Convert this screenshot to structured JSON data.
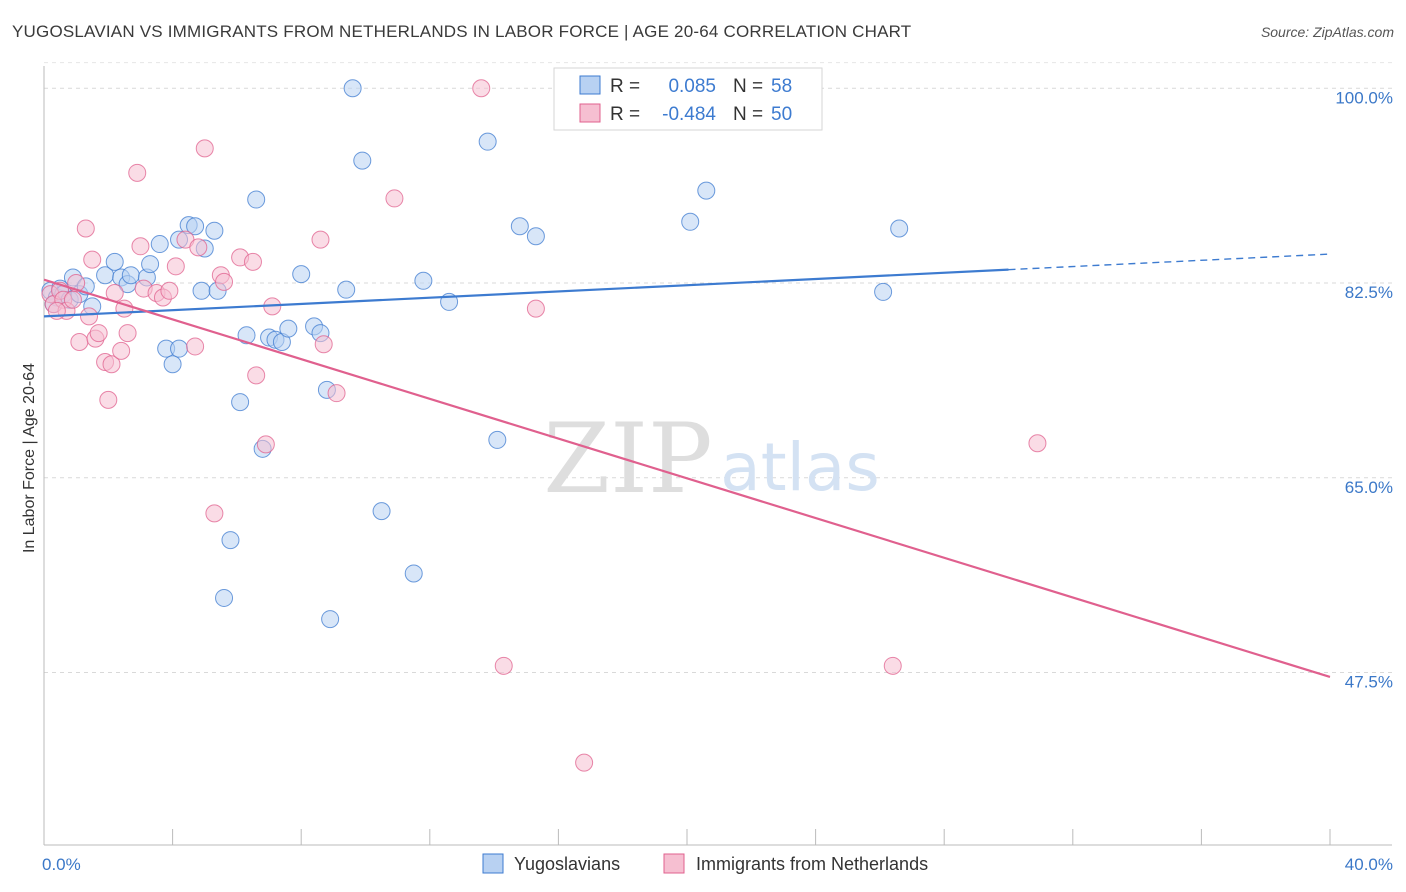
{
  "title": "YUGOSLAVIAN VS IMMIGRANTS FROM NETHERLANDS IN LABOR FORCE | AGE 20-64 CORRELATION CHART",
  "source": "Source: ZipAtlas.com",
  "watermark": {
    "zip": "ZIP",
    "atlas": "atlas"
  },
  "colors": {
    "blue": "#3d7bd0",
    "blue_fill": "#b8d1f2",
    "pink": "#e0608e",
    "pink_fill": "#f6bfd1",
    "tick_text": "#3b78c8"
  },
  "legend": {
    "rows": [
      {
        "r_label": "R =",
        "r_value": "0.085",
        "n_label": "N =",
        "n_value": "58"
      },
      {
        "r_label": "R =",
        "r_value": "-0.484",
        "n_label": "N =",
        "n_value": "50"
      }
    ]
  },
  "bottom_legend": [
    "Yugoslavians",
    "Immigrants from Netherlands"
  ],
  "chart_data": {
    "type": "scatter",
    "xlabel": "",
    "ylabel": "In Labor Force | Age 20-64",
    "xlim": [
      0,
      40
    ],
    "ylim": [
      32,
      102
    ],
    "x_tick_labels": [
      {
        "x": 0,
        "label": "0.0%"
      },
      {
        "x": 40,
        "label": "40.0%"
      }
    ],
    "y_tick_labels": [
      {
        "y": 100,
        "label": "100.0%"
      },
      {
        "y": 82.5,
        "label": "82.5%"
      },
      {
        "y": 65,
        "label": "65.0%"
      },
      {
        "y": 47.5,
        "label": "47.5%"
      }
    ],
    "grid": true,
    "legend_position": "top-center",
    "series": [
      {
        "name": "Yugoslavians",
        "color": "#3d7bd0",
        "trend": {
          "x": [
            0,
            30,
            40
          ],
          "y": [
            79.5,
            83.7,
            85.1
          ],
          "dashed_from_x": 30
        },
        "points": [
          [
            0.2,
            81.8
          ],
          [
            0.4,
            81.2
          ],
          [
            0.5,
            82.0
          ],
          [
            0.6,
            81.5
          ],
          [
            0.8,
            81.0
          ],
          [
            0.9,
            83.0
          ],
          [
            1.1,
            81.5
          ],
          [
            1.3,
            82.2
          ],
          [
            1.5,
            80.4
          ],
          [
            1.9,
            83.2
          ],
          [
            2.2,
            84.4
          ],
          [
            2.4,
            83.0
          ],
          [
            2.6,
            82.4
          ],
          [
            2.7,
            83.2
          ],
          [
            3.2,
            83.0
          ],
          [
            3.3,
            84.2
          ],
          [
            3.6,
            86.0
          ],
          [
            3.8,
            76.6
          ],
          [
            4.0,
            75.2
          ],
          [
            4.2,
            76.6
          ],
          [
            4.2,
            86.4
          ],
          [
            4.5,
            87.7
          ],
          [
            4.7,
            87.6
          ],
          [
            4.9,
            81.8
          ],
          [
            5.0,
            85.6
          ],
          [
            5.3,
            87.2
          ],
          [
            5.4,
            81.8
          ],
          [
            5.8,
            59.4
          ],
          [
            5.6,
            54.2
          ],
          [
            6.1,
            71.8
          ],
          [
            6.3,
            77.8
          ],
          [
            6.6,
            90.0
          ],
          [
            6.8,
            67.6
          ],
          [
            7.0,
            77.6
          ],
          [
            7.2,
            77.4
          ],
          [
            7.4,
            77.2
          ],
          [
            7.6,
            78.4
          ],
          [
            8.0,
            83.3
          ],
          [
            8.4,
            78.6
          ],
          [
            8.6,
            78.0
          ],
          [
            8.8,
            72.9
          ],
          [
            8.9,
            52.3
          ],
          [
            9.4,
            81.9
          ],
          [
            9.6,
            100.0
          ],
          [
            9.9,
            93.5
          ],
          [
            10.5,
            62.0
          ],
          [
            11.5,
            56.4
          ],
          [
            11.8,
            82.7
          ],
          [
            12.6,
            80.8
          ],
          [
            13.8,
            95.2
          ],
          [
            14.1,
            68.4
          ],
          [
            14.8,
            87.6
          ],
          [
            15.3,
            86.7
          ],
          [
            20.1,
            88.0
          ],
          [
            20.6,
            90.8
          ],
          [
            26.6,
            87.4
          ],
          [
            26.1,
            81.7
          ],
          [
            0.3,
            80.6
          ]
        ]
      },
      {
        "name": "Immigrants from Netherlands",
        "color": "#e0608e",
        "trend": {
          "x": [
            0,
            40
          ],
          "y": [
            82.8,
            47.1
          ]
        },
        "points": [
          [
            0.2,
            81.5
          ],
          [
            0.3,
            80.6
          ],
          [
            0.5,
            81.8
          ],
          [
            0.6,
            81.0
          ],
          [
            0.7,
            80.0
          ],
          [
            0.9,
            81.0
          ],
          [
            1.0,
            82.5
          ],
          [
            1.1,
            77.2
          ],
          [
            1.3,
            87.4
          ],
          [
            1.4,
            79.5
          ],
          [
            1.5,
            84.6
          ],
          [
            1.6,
            77.5
          ],
          [
            1.7,
            78.0
          ],
          [
            1.9,
            75.4
          ],
          [
            2.0,
            72.0
          ],
          [
            2.1,
            75.2
          ],
          [
            2.2,
            81.6
          ],
          [
            2.4,
            76.4
          ],
          [
            2.5,
            80.2
          ],
          [
            2.6,
            78.0
          ],
          [
            2.9,
            92.4
          ],
          [
            3.0,
            85.8
          ],
          [
            3.1,
            82.0
          ],
          [
            3.5,
            81.6
          ],
          [
            3.7,
            81.2
          ],
          [
            3.9,
            81.8
          ],
          [
            4.1,
            84.0
          ],
          [
            4.4,
            86.4
          ],
          [
            4.7,
            76.8
          ],
          [
            4.8,
            85.7
          ],
          [
            5.0,
            94.6
          ],
          [
            5.3,
            61.8
          ],
          [
            5.5,
            83.2
          ],
          [
            5.6,
            82.6
          ],
          [
            6.1,
            84.8
          ],
          [
            6.5,
            84.4
          ],
          [
            6.6,
            74.2
          ],
          [
            6.9,
            68.0
          ],
          [
            7.1,
            80.4
          ],
          [
            8.6,
            86.4
          ],
          [
            8.7,
            77.0
          ],
          [
            9.1,
            72.6
          ],
          [
            10.9,
            90.1
          ],
          [
            13.6,
            100.0
          ],
          [
            14.3,
            48.1
          ],
          [
            15.3,
            80.2
          ],
          [
            16.8,
            39.4
          ],
          [
            26.4,
            48.1
          ],
          [
            30.9,
            68.1
          ],
          [
            0.4,
            80.0
          ]
        ]
      }
    ]
  }
}
